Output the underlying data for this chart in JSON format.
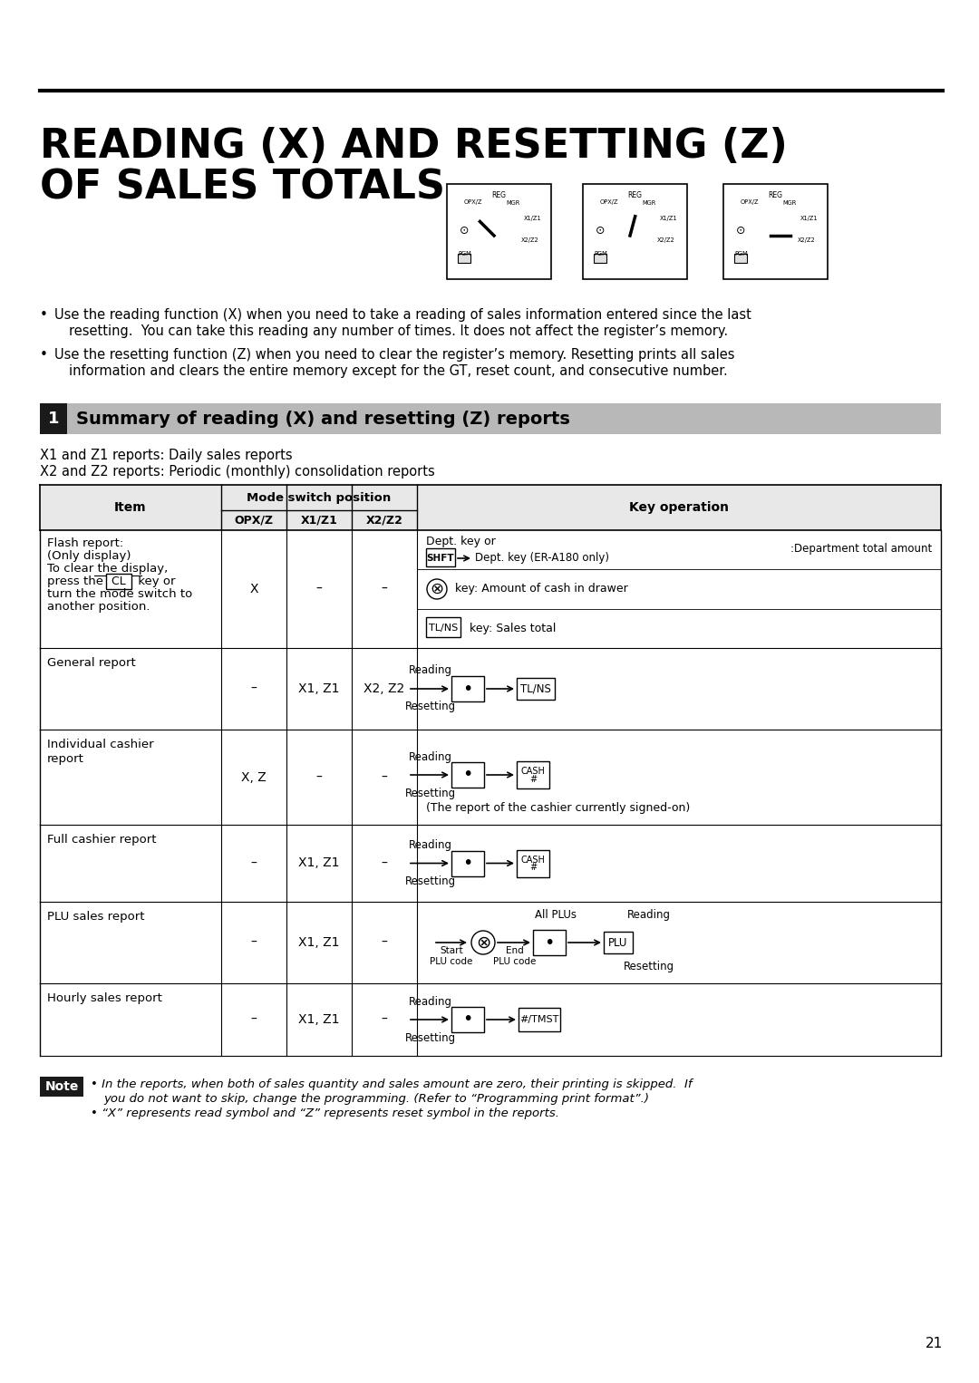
{
  "title_line1": "READING (X) AND RESETTING (Z)",
  "title_line2": "OF SALES TOTALS",
  "bullet1_line1": "Use the reading function (X) when you need to take a reading of sales information entered since the last",
  "bullet1_line2": "resetting.  You can take this reading any number of times. It does not affect the register’s memory.",
  "bullet2_line1": "Use the resetting function (Z) when you need to clear the register’s memory. Resetting prints all sales",
  "bullet2_line2": "information and clears the entire memory except for the GT, reset count, and consecutive number.",
  "section_num": "1",
  "section_title": "Summary of reading (X) and resetting (Z) reports",
  "sub1": "X1 and Z1 reports: Daily sales reports",
  "sub2": "X2 and Z2 reports: Periodic (monthly) consolidation reports",
  "note_text1": "• In the reports, when both of sales quantity and sales amount are zero, their printing is skipped.  If",
  "note_text2": "you do not want to skip, change the programming. (Refer to “Programming print format”.)",
  "note_text3": "• “X” represents read symbol and “Z” represents reset symbol in the reports.",
  "page_num": "21",
  "bg_color": "#ffffff"
}
